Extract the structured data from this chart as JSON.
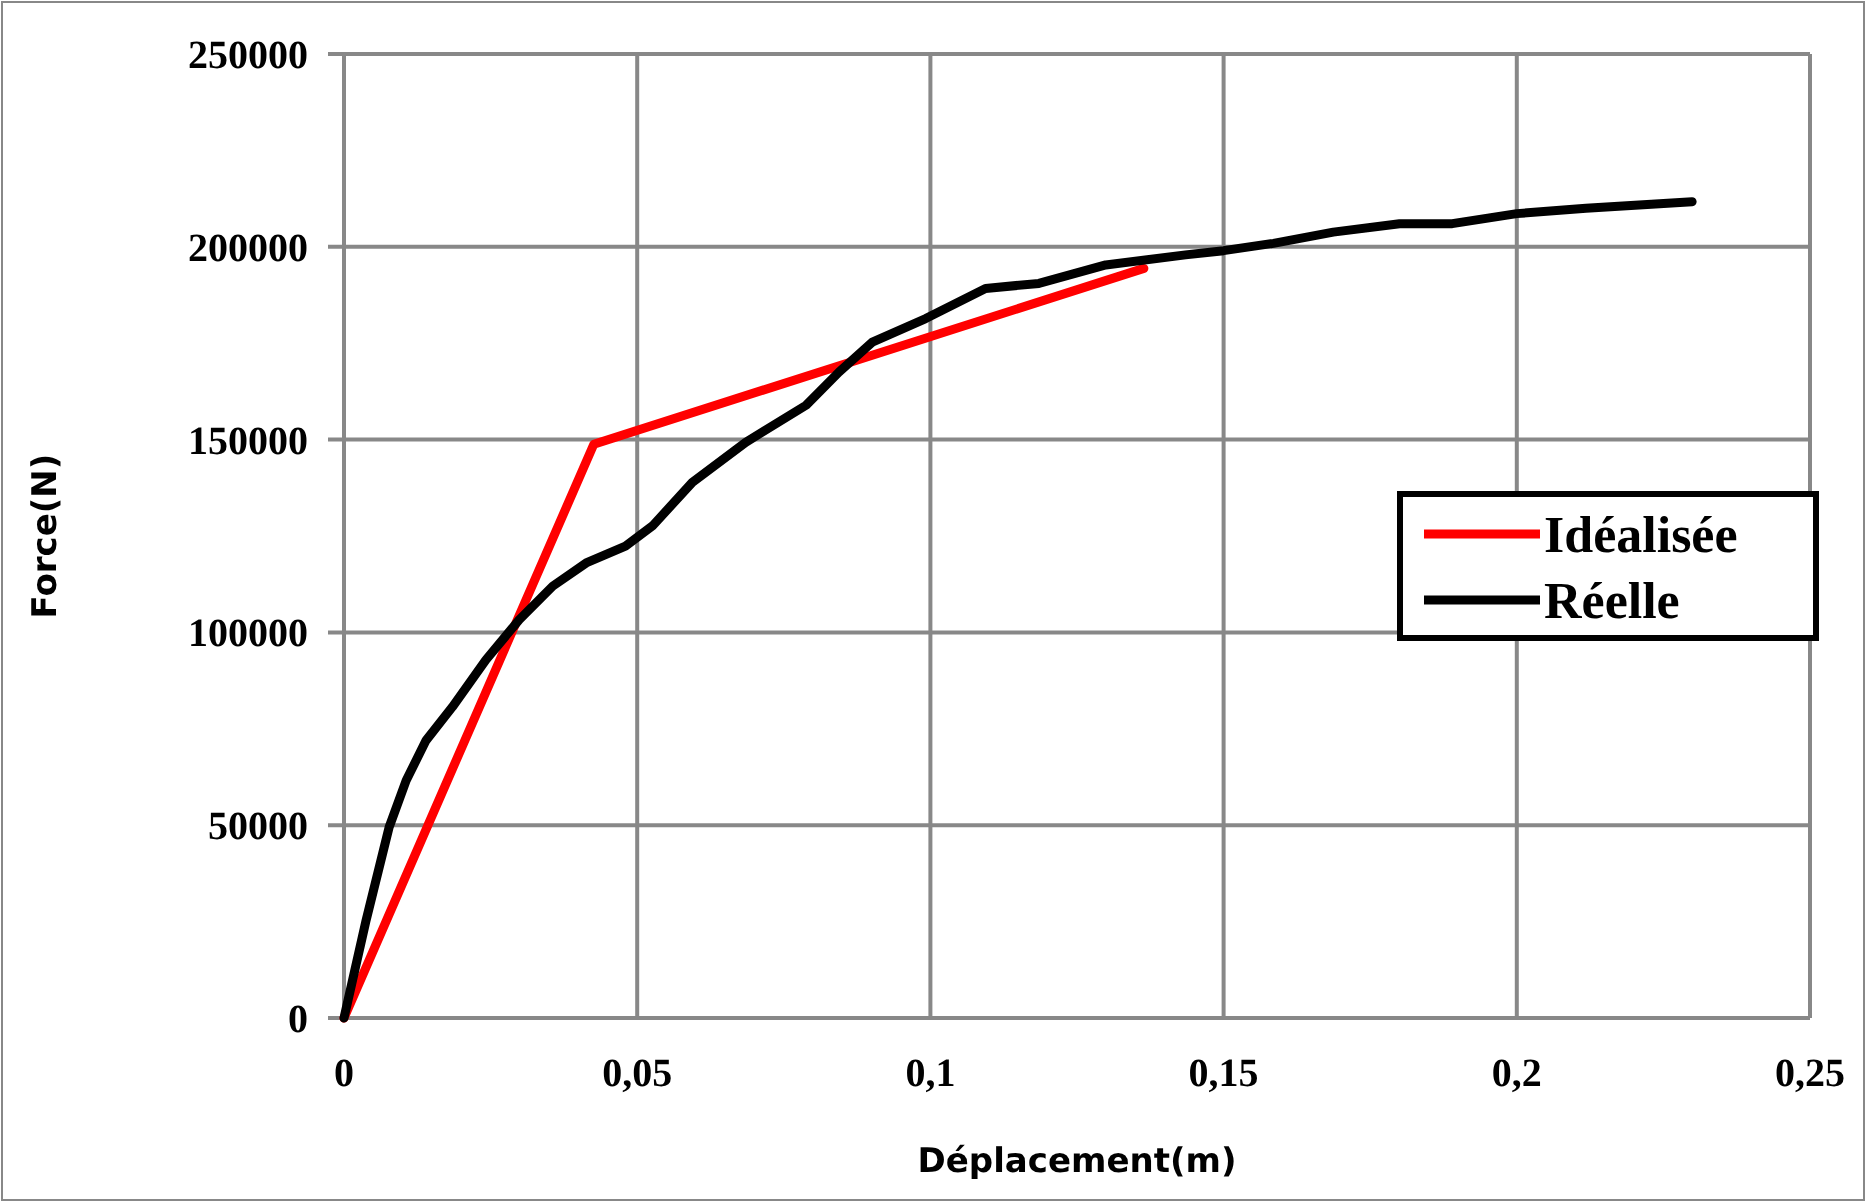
{
  "chart_data": {
    "type": "line",
    "xlabel": "Déplacement(m)",
    "ylabel": "Force(N)",
    "xlim": [
      0,
      0.25
    ],
    "xticks": [
      {
        "value": 0,
        "label": "0"
      },
      {
        "value": 0.05,
        "label": "0,05"
      },
      {
        "value": 0.1,
        "label": "0,1"
      },
      {
        "value": 0.15,
        "label": "0,15"
      },
      {
        "value": 0.2,
        "label": "0,2"
      },
      {
        "value": 0.25,
        "label": "0,25"
      }
    ],
    "ylim": [
      0,
      250000
    ],
    "yticks": [
      0,
      50000,
      100000,
      150000,
      200000,
      250000
    ],
    "grid": true,
    "legend": "right",
    "line_style": "solid",
    "marker": "none",
    "series": [
      {
        "name": "Idéalisée",
        "color": "#ff0000",
        "x": [
          0,
          0.0426,
          0.1364
        ],
        "values": [
          0,
          148800,
          194400
        ]
      },
      {
        "name": "Réelle",
        "color": "#000000",
        "x": [
          0,
          0.00375,
          0.0077,
          0.0106,
          0.014,
          0.0185,
          0.0242,
          0.0299,
          0.0356,
          0.0413,
          0.048,
          0.0526,
          0.0594,
          0.0685,
          0.0788,
          0.0844,
          0.0901,
          0.0992,
          0.1094,
          0.1185,
          0.1299,
          0.1435,
          0.15,
          0.1585,
          0.1687,
          0.18,
          0.189,
          0.2,
          0.2118,
          0.2299
        ],
        "values": [
          0,
          25200,
          49500,
          61600,
          72000,
          80700,
          92900,
          103300,
          112000,
          118000,
          122400,
          127600,
          138900,
          149300,
          158900,
          167500,
          175300,
          181400,
          189200,
          190500,
          195300,
          197900,
          199000,
          200900,
          203800,
          206000,
          206000,
          208600,
          210000,
          211700
        ]
      }
    ]
  }
}
